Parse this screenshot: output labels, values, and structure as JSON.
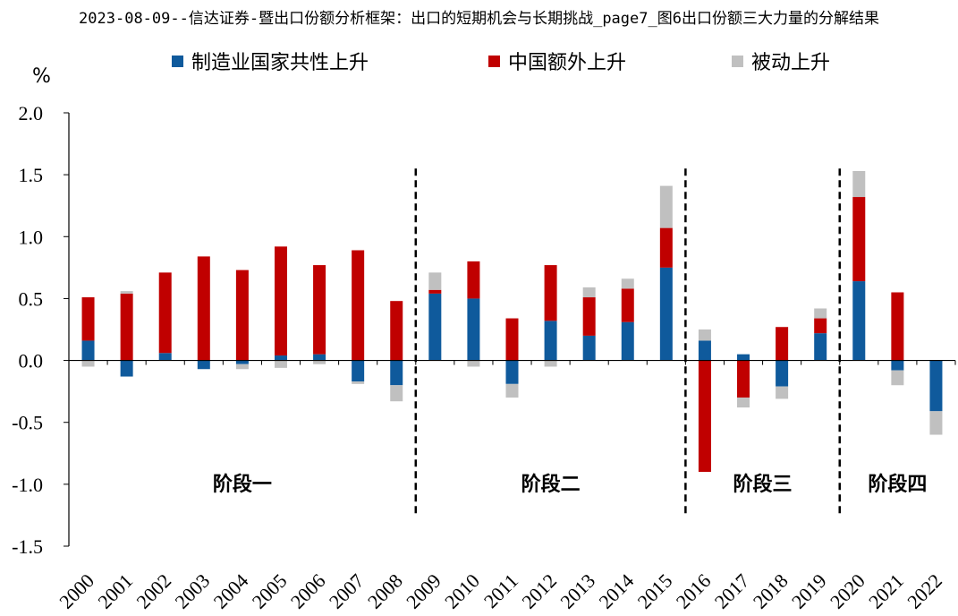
{
  "header": {
    "title": "2023-08-09--信达证券-暨出口份额分析框架：出口的短期机会与长期挑战_page7_图6出口份额三大力量的分解结果"
  },
  "chart_data": {
    "type": "bar",
    "stacked": true,
    "ylabel": "%",
    "ylim": [
      -1.5,
      2.0
    ],
    "yticks": [
      -1.5,
      -1.0,
      -0.5,
      0.0,
      0.5,
      1.0,
      1.5,
      2.0
    ],
    "ytick_labels": [
      "-1.5",
      "-1.0",
      "-0.5",
      "0.0",
      "0.5",
      "1.0",
      "1.5",
      "2.0"
    ],
    "categories": [
      "2000",
      "2001",
      "2002",
      "2003",
      "2004",
      "2005",
      "2006",
      "2007",
      "2008",
      "2009",
      "2010",
      "2011",
      "2012",
      "2013",
      "2014",
      "2015",
      "2016",
      "2017",
      "2018",
      "2019",
      "2020",
      "2021",
      "2022"
    ],
    "legend_position": "top",
    "series": [
      {
        "name": "制造业国家共性上升",
        "color": "#0f5a9c",
        "values": [
          0.16,
          -0.13,
          0.06,
          -0.07,
          -0.03,
          0.04,
          0.05,
          -0.17,
          -0.2,
          0.54,
          0.5,
          -0.19,
          0.32,
          0.2,
          0.31,
          0.75,
          0.16,
          0.05,
          -0.21,
          0.22,
          0.64,
          -0.08,
          -0.41
        ]
      },
      {
        "name": "中国额外上升",
        "color": "#c00000",
        "values": [
          0.35,
          0.54,
          0.65,
          0.84,
          0.73,
          0.88,
          0.72,
          0.89,
          0.48,
          0.03,
          0.3,
          0.34,
          0.45,
          0.31,
          0.27,
          0.32,
          -0.9,
          -0.3,
          0.27,
          0.12,
          0.68,
          0.55,
          0.0
        ]
      },
      {
        "name": "被动上升",
        "color": "#c0c0c0",
        "values": [
          -0.05,
          0.02,
          0.0,
          0.0,
          -0.04,
          -0.06,
          -0.03,
          -0.02,
          -0.13,
          0.14,
          -0.05,
          -0.11,
          -0.05,
          0.08,
          0.08,
          0.34,
          0.09,
          -0.08,
          -0.1,
          0.08,
          0.21,
          -0.12,
          -0.19
        ]
      }
    ],
    "stages": [
      {
        "label": "阶段一",
        "from": "2000",
        "to": "2008"
      },
      {
        "label": "阶段二",
        "from": "2009",
        "to": "2015"
      },
      {
        "label": "阶段三",
        "from": "2016",
        "to": "2019"
      },
      {
        "label": "阶段四",
        "from": "2020",
        "to": "2022"
      }
    ],
    "stage_label_y": -1.05,
    "grid": false
  }
}
